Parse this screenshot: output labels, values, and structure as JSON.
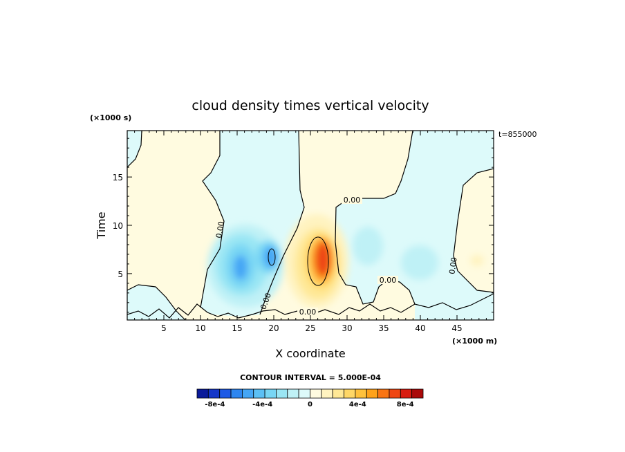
{
  "chart_data": {
    "type": "heatmap",
    "title": "cloud density times vertical velocity",
    "xlabel": "X coordinate",
    "ylabel": "Time",
    "x_unit": "(×1000 m)",
    "y_unit": "(×1000 s)",
    "time_stamp": "t=855000",
    "xlim": [
      0,
      50
    ],
    "ylim": [
      0.2,
      19.8
    ],
    "x_ticks": [
      5,
      10,
      15,
      20,
      25,
      30,
      35,
      40,
      45
    ],
    "y_ticks": [
      5,
      10,
      15
    ],
    "contour_labels": [
      "0.00",
      "0.00",
      "0.00",
      "0.00",
      "0.00",
      "0.00"
    ],
    "contour_interval_text": "CONTOUR INTERVAL = 5.000E-04",
    "colorbar": {
      "min": -0.00095,
      "max": 0.00095,
      "step": 0.0001,
      "tick_labels": [
        "-8e-4",
        "-4e-4",
        "0",
        "4e-4",
        "8e-4"
      ],
      "tick_values": [
        -0.0008,
        -0.0004,
        0,
        0.0004,
        0.0008
      ],
      "colors": [
        "#0a1a9a",
        "#1436c8",
        "#1e5ae6",
        "#2e86f0",
        "#45a6f5",
        "#5cc0f5",
        "#78d6f4",
        "#9ae6f4",
        "#bff1f6",
        "#ddfafa",
        "#fffbe0",
        "#fff3c0",
        "#ffe896",
        "#ffd766",
        "#ffc13c",
        "#ffa21a",
        "#f97514",
        "#ee4612",
        "#d81c10",
        "#aa0a0a"
      ]
    },
    "features": [
      {
        "name": "negative core",
        "x": 15.8,
        "y": 5.6,
        "value": -0.0006
      },
      {
        "name": "negative core",
        "x": 19.2,
        "y": 6.4,
        "value": -0.0006
      },
      {
        "name": "positive core",
        "x": 26.6,
        "y": 6.5,
        "value": 0.00095
      },
      {
        "name": "negative patch",
        "x": 33.5,
        "y": 8.0,
        "value": -0.0002
      },
      {
        "name": "negative patch",
        "x": 40.5,
        "y": 6.0,
        "value": -0.0002
      }
    ]
  }
}
